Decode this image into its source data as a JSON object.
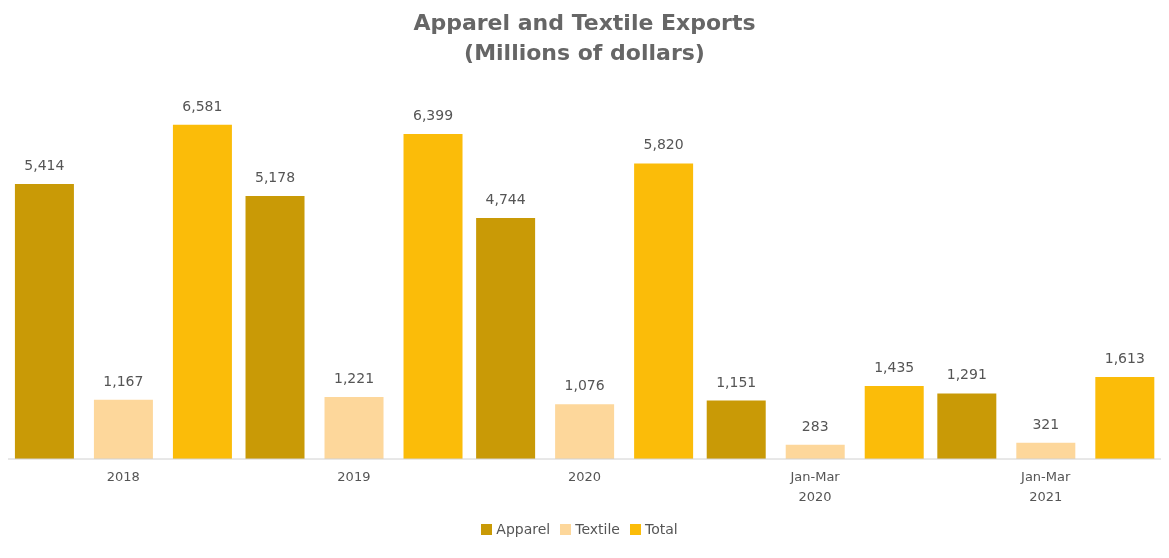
{
  "chart_data": {
    "type": "bar",
    "title": "Apparel and Textile Exports",
    "subtitle": "(Millions of dollars)",
    "categories": [
      "2018",
      "2019",
      "2020",
      "Jan-Mar 2020",
      "Jan-Mar 2021"
    ],
    "series": [
      {
        "name": "Apparel",
        "color": "#c99a06",
        "values": [
          5414,
          5178,
          4744,
          1151,
          1291
        ],
        "value_labels": [
          "5,414",
          "5,178",
          "4,744",
          "1,151",
          "1,291"
        ]
      },
      {
        "name": "Textile",
        "color": "#fdd79b",
        "values": [
          1167,
          1221,
          1076,
          283,
          321
        ],
        "value_labels": [
          "1,167",
          "1,221",
          "1,076",
          "283",
          "321"
        ]
      },
      {
        "name": "Total",
        "color": "#fbbc09",
        "values": [
          6581,
          6399,
          5820,
          1435,
          1613
        ],
        "value_labels": [
          "6,581",
          "6,399",
          "5,820",
          "1,435",
          "1,613"
        ]
      }
    ],
    "tick_labels": "x",
    "legend": "bottom"
  }
}
